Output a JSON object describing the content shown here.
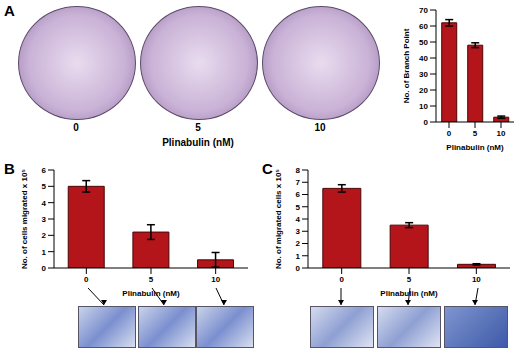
{
  "chart_data": [
    {
      "type": "bar",
      "title": "A",
      "categories": [
        "0",
        "5",
        "10"
      ],
      "values": [
        62,
        48,
        3
      ],
      "errors": [
        2,
        1.5,
        0.7
      ],
      "x_label": "Plinabulin (nM)",
      "y_label": "No. of Branch Point",
      "ylim": [
        0,
        70
      ],
      "yticks": [
        0,
        10,
        20,
        30,
        40,
        50,
        60,
        70
      ],
      "color": "#b3151b"
    },
    {
      "type": "bar",
      "title": "B",
      "categories": [
        "0",
        "5",
        "10"
      ],
      "values": [
        5.0,
        2.2,
        0.5
      ],
      "errors": [
        0.35,
        0.45,
        0.45
      ],
      "x_label": "Plinabulin (nM)",
      "y_label": "No. of cells migrated x 10⁵",
      "ylim": [
        0,
        6
      ],
      "yticks": [
        0,
        1,
        2,
        3,
        4,
        5,
        6
      ],
      "color": "#b3151b"
    },
    {
      "type": "bar",
      "title": "C",
      "categories": [
        "0",
        "5",
        "10"
      ],
      "values": [
        6.5,
        3.5,
        0.3
      ],
      "errors": [
        0.3,
        0.2,
        0.05
      ],
      "x_label": "Plinabulin (nM)",
      "y_label": "No. of migrated cells x 10⁵",
      "ylim": [
        0,
        8
      ],
      "yticks": [
        0,
        1,
        2,
        3,
        4,
        5,
        6,
        7,
        8
      ],
      "color": "#b3151b"
    }
  ]
}
